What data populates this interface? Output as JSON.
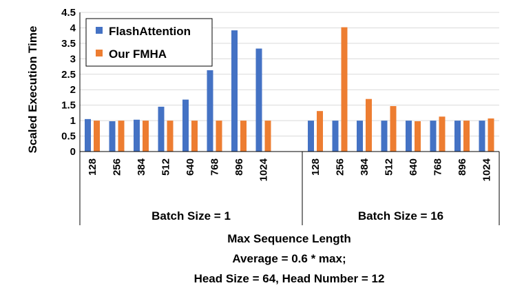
{
  "chart_data": {
    "type": "bar",
    "ylabel": "Scaled Execution Time",
    "xlabel": "Max Sequence Length",
    "notes": [
      "Average = 0.6 * max;",
      "Head Size = 64, Head Number = 12"
    ],
    "ylim": [
      0,
      4.5
    ],
    "yticks": [
      "0",
      "0.5",
      "1",
      "1.5",
      "2",
      "2.5",
      "3",
      "3.5",
      "4",
      "4.5"
    ],
    "grid": true,
    "legend_position": "top-left",
    "groups": [
      {
        "label": "Batch Size = 1",
        "categories": [
          "128",
          "256",
          "384",
          "512",
          "640",
          "768",
          "896",
          "1024"
        ],
        "series": [
          {
            "name": "FlashAttention",
            "values": [
              1.05,
              0.98,
              1.03,
              1.45,
              1.68,
              2.63,
              3.92,
              3.33
            ]
          },
          {
            "name": "Our FMHA",
            "values": [
              1.0,
              1.0,
              1.0,
              1.0,
              1.0,
              1.0,
              1.0,
              1.0
            ]
          }
        ]
      },
      {
        "label": "Batch Size = 16",
        "categories": [
          "128",
          "256",
          "384",
          "512",
          "640",
          "768",
          "896",
          "1024"
        ],
        "series": [
          {
            "name": "FlashAttention",
            "values": [
              1.0,
              1.0,
              1.0,
              1.0,
              1.0,
              1.0,
              1.0,
              1.0
            ]
          },
          {
            "name": "Our FMHA",
            "values": [
              1.31,
              4.02,
              1.7,
              1.47,
              0.98,
              1.13,
              1.0,
              1.07
            ]
          }
        ]
      }
    ],
    "colors": {
      "FlashAttention": "#4472C4",
      "Our FMHA": "#ED7D31"
    }
  }
}
